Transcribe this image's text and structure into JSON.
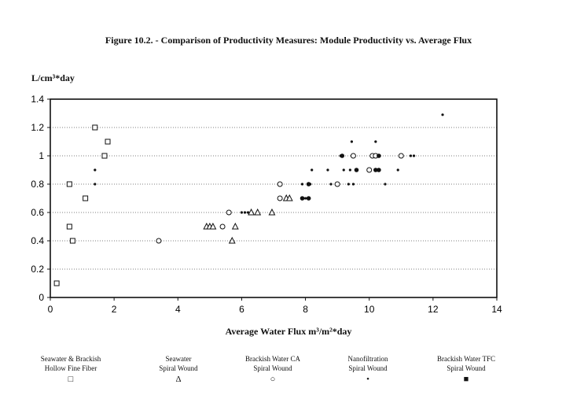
{
  "figure_title": "Figure 10.2. - Comparison of Productivity Measures: Module Productivity vs. Average Flux",
  "ylabel_unit": "L/cm³*day",
  "xlabel_text": "Average Water Flux m³/m²*day",
  "legend": [
    {
      "line1": "Seawater & Brackish",
      "line2": "Hollow Fine Fiber",
      "symbol": "□",
      "icon": "square-open-icon"
    },
    {
      "line1": "Seawater",
      "line2": "Spiral Wound",
      "symbol": "Δ",
      "icon": "triangle-open-icon"
    },
    {
      "line1": "Brackish Water CA",
      "line2": "Spiral Wound",
      "symbol": "○",
      "icon": "circle-open-icon"
    },
    {
      "line1": "Nanofiltration",
      "line2": "Spiral Wound",
      "symbol": "•",
      "icon": "dot-icon"
    },
    {
      "line1": "Brackish Water TFC",
      "line2": "Spiral Wound",
      "symbol": "■",
      "icon": "square-filled-icon"
    }
  ],
  "chart_data": {
    "type": "scatter",
    "title": "Figure 10.2. - Comparison of Productivity Measures: Module Productivity vs. Average Flux",
    "xlabel": "Average Water Flux m³/m²*day",
    "ylabel": "L/cm³*day",
    "xlim": [
      0,
      14
    ],
    "ylim": [
      0,
      1.4
    ],
    "xticks": [
      0,
      2,
      4,
      6,
      8,
      10,
      12,
      14
    ],
    "yticks": [
      0,
      0.2,
      0.4,
      0.6,
      0.8,
      1,
      1.2,
      1.4
    ],
    "grid": "horizontal dotted",
    "series": [
      {
        "name": "Seawater & Brackish Hollow Fine Fiber",
        "marker": "square-open",
        "points": [
          [
            0.2,
            0.1
          ],
          [
            0.6,
            0.5
          ],
          [
            0.6,
            0.8
          ],
          [
            0.7,
            0.4
          ],
          [
            1.1,
            0.7
          ],
          [
            1.4,
            1.2
          ],
          [
            1.7,
            1.0
          ],
          [
            1.8,
            1.1
          ]
        ]
      },
      {
        "name": "Seawater Spiral Wound",
        "marker": "triangle-open",
        "points": [
          [
            4.9,
            0.5
          ],
          [
            5.0,
            0.5
          ],
          [
            5.1,
            0.5
          ],
          [
            5.7,
            0.4
          ],
          [
            5.8,
            0.5
          ],
          [
            6.3,
            0.6
          ],
          [
            6.5,
            0.6
          ],
          [
            6.95,
            0.6
          ],
          [
            7.4,
            0.7
          ],
          [
            7.5,
            0.7
          ]
        ]
      },
      {
        "name": "Brackish Water CA Spiral Wound",
        "marker": "circle-open",
        "points": [
          [
            3.4,
            0.4
          ],
          [
            5.4,
            0.5
          ],
          [
            5.6,
            0.6
          ],
          [
            7.2,
            0.7
          ],
          [
            7.2,
            0.8
          ],
          [
            9.0,
            0.8
          ],
          [
            9.5,
            1.0
          ],
          [
            10.0,
            0.9
          ],
          [
            10.1,
            1.0
          ],
          [
            10.2,
            1.0
          ],
          [
            11.0,
            1.0
          ]
        ]
      },
      {
        "name": "Nanofiltration Spiral Wound",
        "marker": "dot",
        "points": [
          [
            1.4,
            0.9
          ],
          [
            1.4,
            0.8
          ],
          [
            6.0,
            0.6
          ],
          [
            6.1,
            0.6
          ],
          [
            6.2,
            0.6
          ],
          [
            7.9,
            0.8
          ],
          [
            8.0,
            0.7
          ],
          [
            8.1,
            0.7
          ],
          [
            8.15,
            0.8
          ],
          [
            8.2,
            0.9
          ],
          [
            8.7,
            0.9
          ],
          [
            8.8,
            0.8
          ],
          [
            9.1,
            1.0
          ],
          [
            9.2,
            0.9
          ],
          [
            9.35,
            0.8
          ],
          [
            9.4,
            0.9
          ],
          [
            9.45,
            1.1
          ],
          [
            9.5,
            0.8
          ],
          [
            10.2,
            1.1
          ],
          [
            10.2,
            0.9
          ],
          [
            10.5,
            0.8
          ],
          [
            10.9,
            0.9
          ],
          [
            11.3,
            1.0
          ],
          [
            11.4,
            1.0
          ],
          [
            12.3,
            1.29
          ]
        ]
      },
      {
        "name": "Brackish Water TFC Spiral Wound",
        "marker": "square-filled",
        "points": [
          [
            7.9,
            0.7
          ],
          [
            8.1,
            0.8
          ],
          [
            8.1,
            0.7
          ],
          [
            9.15,
            1.0
          ],
          [
            9.6,
            0.9
          ],
          [
            10.2,
            0.9
          ],
          [
            10.3,
            0.9
          ],
          [
            10.3,
            1.0
          ]
        ]
      }
    ]
  }
}
